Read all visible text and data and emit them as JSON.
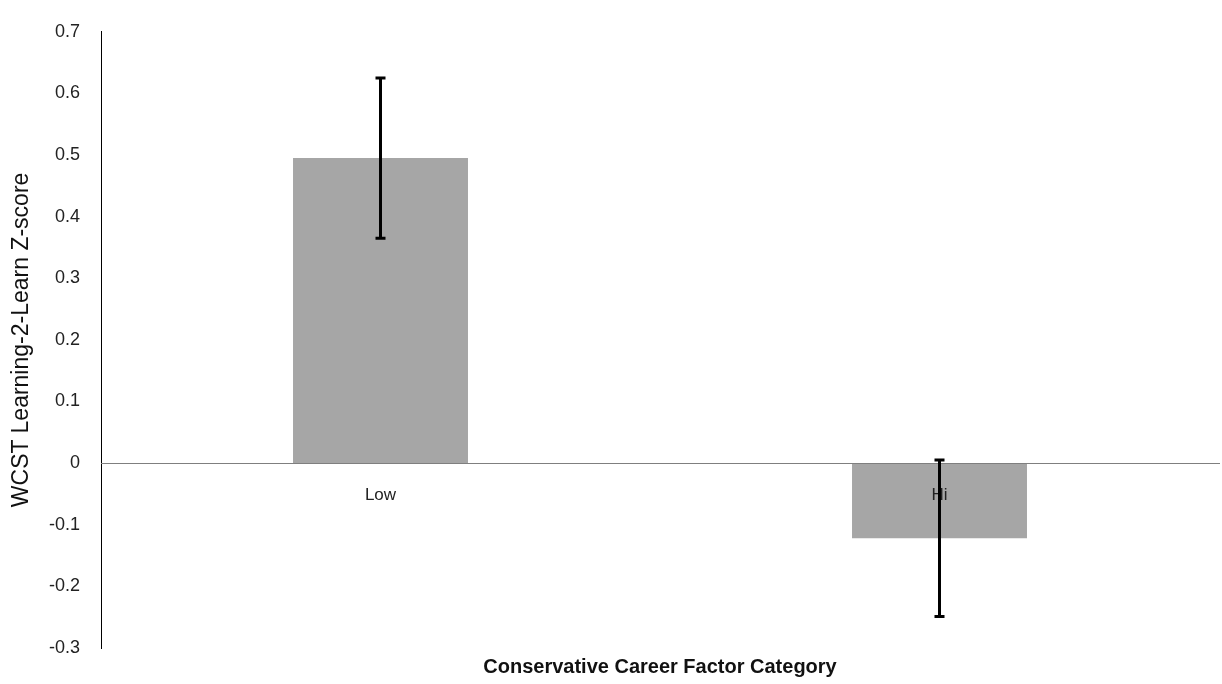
{
  "chart_data": {
    "type": "bar",
    "xlabel": "Conservative Career Factor Category",
    "ylabel": "WCST Learning-2-Learn Z-score",
    "categories": [
      "Low",
      "Hi"
    ],
    "values": [
      0.495,
      -0.122
    ],
    "errors": [
      0.13,
      0.127
    ],
    "color": "#a6a6a6",
    "ylim": [
      -0.3,
      0.7
    ],
    "yticks": [
      -0.3,
      -0.2,
      -0.1,
      0,
      0.1,
      0.2,
      0.3,
      0.4,
      0.5,
      0.6,
      0.7
    ]
  }
}
